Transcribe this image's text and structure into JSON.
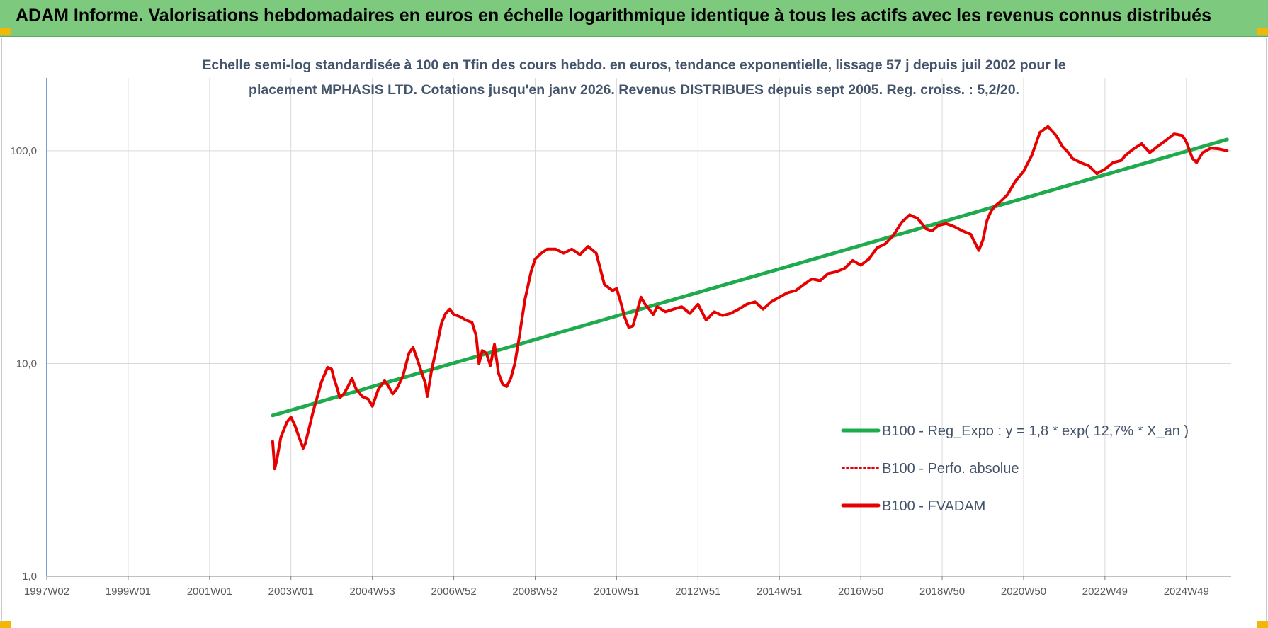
{
  "banner": {
    "text": "ADAM Informe. Valorisations hebdomadaires en euros en échelle logarithmique identique à tous les actifs avec les revenus connus distribués",
    "color": "#7dc97d"
  },
  "chart_data": {
    "type": "line",
    "title_lines": [
      "Echelle semi-log standardisée à 100 en Tfin des cours hebdo. en euros, tendance exponentielle, lissage 57 j depuis juil 2002 pour le",
      "placement MPHASIS LTD. Cotations jusqu'en janv 2026. Revenus DISTRIBUES depuis sept 2005. Reg. croiss. : 5,2/20."
    ],
    "y_scale": "log",
    "ylim": [
      1,
      220
    ],
    "y_ticks": [
      {
        "value": 1,
        "label": "1,0"
      },
      {
        "value": 10,
        "label": "10,0"
      },
      {
        "value": 100,
        "label": "100,0"
      }
    ],
    "xlim": [
      1997.0,
      2026.1
    ],
    "x_ticks": [
      {
        "value": 1997.0,
        "label": "1997W02"
      },
      {
        "value": 1999.0,
        "label": "1999W01"
      },
      {
        "value": 2001.0,
        "label": "2001W01"
      },
      {
        "value": 2003.0,
        "label": "2003W01"
      },
      {
        "value": 2005.0,
        "label": "2004W53"
      },
      {
        "value": 2007.0,
        "label": "2006W52"
      },
      {
        "value": 2009.0,
        "label": "2008W52"
      },
      {
        "value": 2011.0,
        "label": "2010W51"
      },
      {
        "value": 2013.0,
        "label": "2012W51"
      },
      {
        "value": 2015.0,
        "label": "2014W51"
      },
      {
        "value": 2017.0,
        "label": "2016W50"
      },
      {
        "value": 2019.0,
        "label": "2018W50"
      },
      {
        "value": 2021.0,
        "label": "2020W50"
      },
      {
        "value": 2023.0,
        "label": "2022W49"
      },
      {
        "value": 2025.0,
        "label": "2024W49"
      }
    ],
    "grid": true,
    "legend_position": "bottom-right",
    "series": [
      {
        "name": "B100 - Reg_Expo : y = 1,8 * exp( 12,7% *  X_an )",
        "color": "#1faa4e",
        "style": "solid",
        "x": [
          2002.55,
          2026.0
        ],
        "y": [
          5.7,
          113
        ]
      },
      {
        "name": "B100 - Perfo. absolue",
        "color": "#e60000",
        "style": "dotted",
        "x": [],
        "y": []
      },
      {
        "name": "B100 - FVADAM",
        "color": "#e60000",
        "style": "solid",
        "x": [
          2002.55,
          2002.6,
          2002.65,
          2002.75,
          2002.9,
          2003.0,
          2003.1,
          2003.2,
          2003.3,
          2003.35,
          2003.45,
          2003.55,
          2003.65,
          2003.75,
          2003.9,
          2004.0,
          2004.05,
          2004.15,
          2004.2,
          2004.3,
          2004.4,
          2004.5,
          2004.6,
          2004.75,
          2004.9,
          2005.0,
          2005.15,
          2005.3,
          2005.4,
          2005.5,
          2005.6,
          2005.75,
          2005.9,
          2006.0,
          2006.1,
          2006.2,
          2006.3,
          2006.35,
          2006.45,
          2006.6,
          2006.7,
          2006.8,
          2006.9,
          2007.0,
          2007.15,
          2007.3,
          2007.45,
          2007.55,
          2007.62,
          2007.7,
          2007.8,
          2007.9,
          2008.0,
          2008.1,
          2008.2,
          2008.3,
          2008.4,
          2008.5,
          2008.6,
          2008.75,
          2008.9,
          2009.0,
          2009.15,
          2009.3,
          2009.5,
          2009.7,
          2009.9,
          2010.1,
          2010.3,
          2010.5,
          2010.7,
          2010.9,
          2011.0,
          2011.1,
          2011.2,
          2011.3,
          2011.4,
          2011.5,
          2011.6,
          2011.7,
          2011.8,
          2011.9,
          2012.0,
          2012.2,
          2012.4,
          2012.6,
          2012.8,
          2013.0,
          2013.2,
          2013.4,
          2013.6,
          2013.8,
          2014.0,
          2014.2,
          2014.4,
          2014.6,
          2014.8,
          2015.0,
          2015.2,
          2015.4,
          2015.6,
          2015.8,
          2016.0,
          2016.2,
          2016.4,
          2016.6,
          2016.8,
          2017.0,
          2017.2,
          2017.4,
          2017.6,
          2017.8,
          2018.0,
          2018.2,
          2018.4,
          2018.6,
          2018.75,
          2018.9,
          2019.0,
          2019.1,
          2019.3,
          2019.5,
          2019.7,
          2019.9,
          2020.0,
          2020.1,
          2020.2,
          2020.3,
          2020.4,
          2020.6,
          2020.8,
          2021.0,
          2021.2,
          2021.4,
          2021.6,
          2021.8,
          2021.95,
          2022.1,
          2022.2,
          2022.4,
          2022.6,
          2022.8,
          2023.0,
          2023.2,
          2023.4,
          2023.5,
          2023.7,
          2023.9,
          2024.1,
          2024.3,
          2024.5,
          2024.7,
          2024.9,
          2025.0,
          2025.15,
          2025.25,
          2025.4,
          2025.6,
          2025.8,
          2026.0
        ],
        "y": [
          4.3,
          3.2,
          3.5,
          4.5,
          5.3,
          5.6,
          5.1,
          4.5,
          4.0,
          4.2,
          5.0,
          6.0,
          7.0,
          8.2,
          9.6,
          9.4,
          8.6,
          7.5,
          6.9,
          7.2,
          7.8,
          8.5,
          7.6,
          7.0,
          6.8,
          6.3,
          7.6,
          8.3,
          7.8,
          7.2,
          7.6,
          8.7,
          11.2,
          11.9,
          10.5,
          9.2,
          8.1,
          7.0,
          9.2,
          12.5,
          15.5,
          17.2,
          18.0,
          17.0,
          16.6,
          16.0,
          15.6,
          13.5,
          10.0,
          11.5,
          11.2,
          9.8,
          12.3,
          9.0,
          8.0,
          7.8,
          8.5,
          10.0,
          13.0,
          20.0,
          27.0,
          31.0,
          33.0,
          34.5,
          34.5,
          33.0,
          34.5,
          32.5,
          35.5,
          33.0,
          23.5,
          22.0,
          22.5,
          19.5,
          16.5,
          14.8,
          15.0,
          17.5,
          20.5,
          19.0,
          18.0,
          17.0,
          18.5,
          17.5,
          18.0,
          18.5,
          17.2,
          19.0,
          16.0,
          17.5,
          16.8,
          17.2,
          18.0,
          19.0,
          19.5,
          18.0,
          19.5,
          20.5,
          21.5,
          22.0,
          23.5,
          25.0,
          24.5,
          26.5,
          27.0,
          28.0,
          30.5,
          29.0,
          31.0,
          35.0,
          36.5,
          40.0,
          46.0,
          50.0,
          48.0,
          43.0,
          42.0,
          44.5,
          45.0,
          45.5,
          44.0,
          42.0,
          40.5,
          34.0,
          38.0,
          47.0,
          52.0,
          55.0,
          57.0,
          62.0,
          72.0,
          80.0,
          95.0,
          122.0,
          130.0,
          118.0,
          105.0,
          98.0,
          92.0,
          88.0,
          85.0,
          78.0,
          82.0,
          88.0,
          90.0,
          95.0,
          102.0,
          108.0,
          98.0,
          105.0,
          112.0,
          120.0,
          118.0,
          110.0,
          92.0,
          88.0,
          98.0,
          103.0,
          102.0,
          100.0
        ]
      }
    ]
  }
}
